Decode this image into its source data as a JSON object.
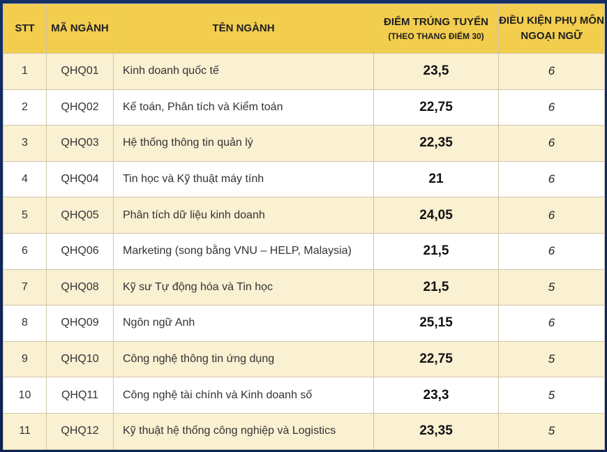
{
  "header": {
    "stt": "STT",
    "code": "Mã ngành",
    "name": "Tên ngành",
    "score": "Điểm trúng tuyển",
    "score_sub": "(Theo thang điểm 30)",
    "condition": "Điều kiện phụ môn Ngoại ngữ"
  },
  "rows": [
    {
      "stt": "1",
      "code": "QHQ01",
      "name": "Kinh doanh quốc tế",
      "score": "23,5",
      "condition": "6"
    },
    {
      "stt": "2",
      "code": "QHQ02",
      "name": "Kế toán, Phân tích và Kiểm toán",
      "score": "22,75",
      "condition": "6"
    },
    {
      "stt": "3",
      "code": "QHQ03",
      "name": "Hệ thống thông tin quản lý",
      "score": "22,35",
      "condition": "6"
    },
    {
      "stt": "4",
      "code": "QHQ04",
      "name": "Tin học và Kỹ thuật máy tính",
      "score": "21",
      "condition": "6"
    },
    {
      "stt": "5",
      "code": "QHQ05",
      "name": "Phân tích dữ liệu kinh doanh",
      "score": "24,05",
      "condition": "6"
    },
    {
      "stt": "6",
      "code": "QHQ06",
      "name": "Marketing (song bằng VNU – HELP, Malaysia)",
      "score": "21,5",
      "condition": "6"
    },
    {
      "stt": "7",
      "code": "QHQ08",
      "name": "Kỹ sư Tự động hóa và Tin học",
      "score": "21,5",
      "condition": "5"
    },
    {
      "stt": "8",
      "code": "QHQ09",
      "name": "Ngôn ngữ Anh",
      "score": "25,15",
      "condition": "6"
    },
    {
      "stt": "9",
      "code": "QHQ10",
      "name": "Công nghệ thông tin ứng dụng",
      "score": "22,75",
      "condition": "5"
    },
    {
      "stt": "10",
      "code": "QHQ11",
      "name": "Công nghệ tài chính và Kinh doanh số",
      "score": "23,3",
      "condition": "5"
    },
    {
      "stt": "11",
      "code": "QHQ12",
      "name": "Kỹ thuật hệ thống công nghiệp và Logistics",
      "score": "23,35",
      "condition": "5"
    }
  ],
  "colors": {
    "header_bg": "#f2cd4e",
    "row_alt_bg": "#faf0d2",
    "row_bg": "#ffffff",
    "frame_bg": "#0f2a5c"
  }
}
